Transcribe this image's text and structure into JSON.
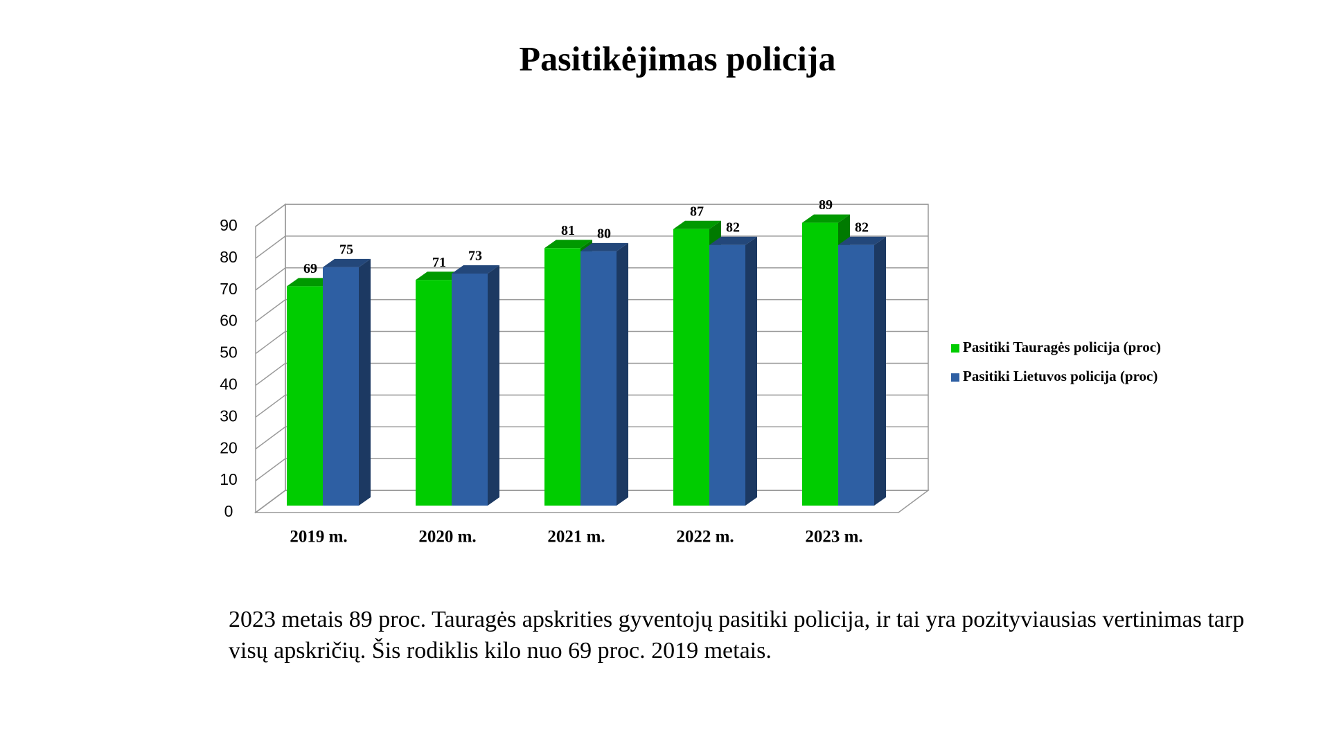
{
  "chart_data": {
    "type": "bar3d",
    "title": "Pasitikėjimas policija",
    "categories": [
      "2019 m.",
      "2020 m.",
      "2021 m.",
      "2022 m.",
      "2023 m."
    ],
    "series": [
      {
        "name": "Pasitiki Tauragės policija (proc)",
        "color": "#00cc00",
        "values": [
          69,
          71,
          81,
          87,
          89
        ]
      },
      {
        "name": "Pasitiki Lietuvos policija (proc)",
        "color": "#2e5fa3",
        "values": [
          75,
          73,
          80,
          82,
          82
        ]
      }
    ],
    "ylim": [
      0,
      90
    ],
    "yticks": [
      0,
      10,
      20,
      30,
      40,
      50,
      60,
      70,
      80,
      90
    ],
    "grid": true,
    "legend": "right"
  },
  "body": "2023 metais 89 proc. Tauragės apskrities gyventojų pasitiki policija, ir tai yra pozityviausias vertinimas tarp visų apskričių. Šis rodiklis kilo nuo 69 proc. 2019 metais."
}
